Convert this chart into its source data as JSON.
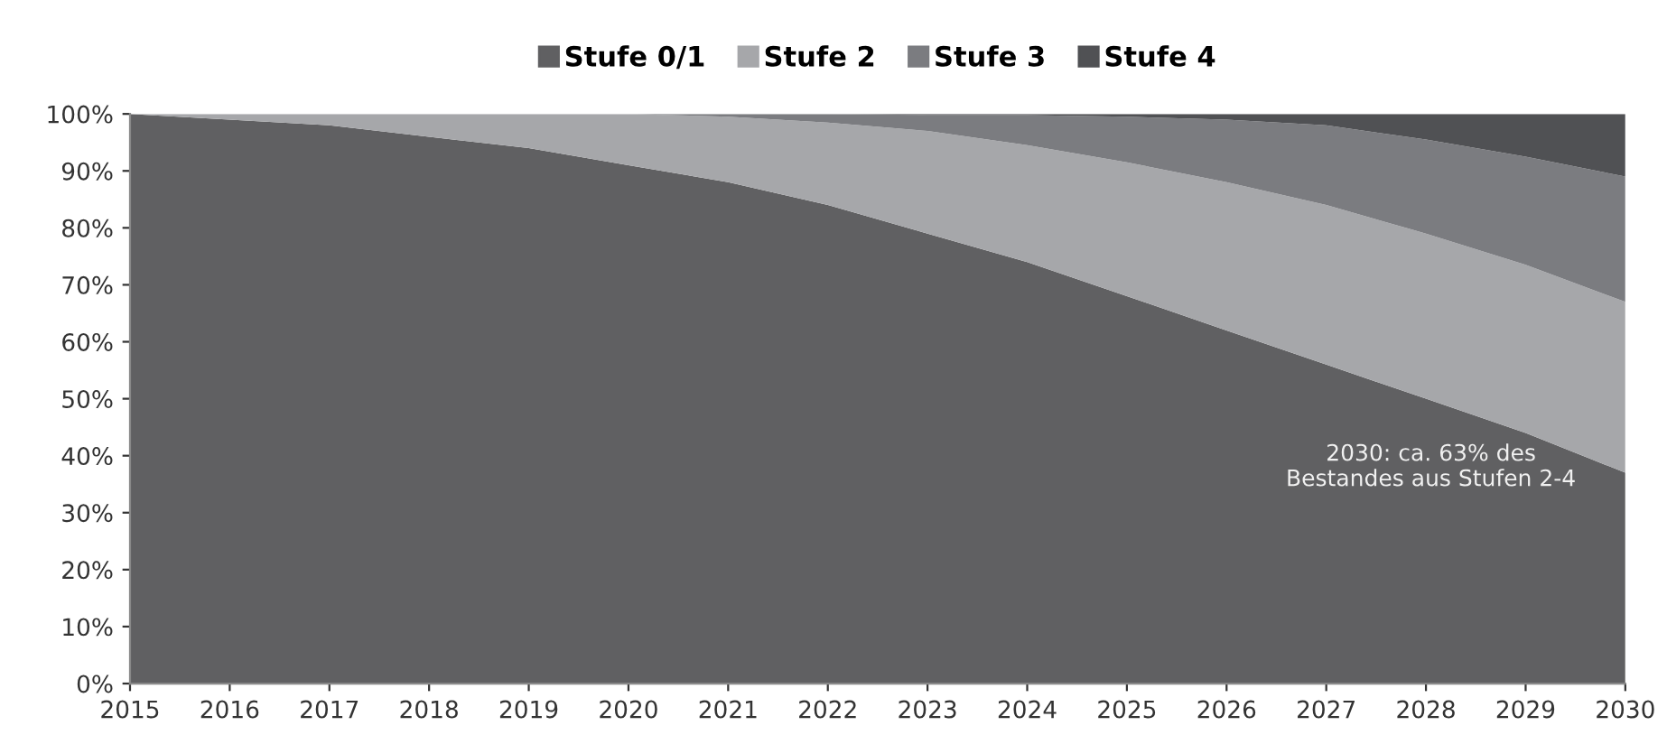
{
  "chart_data": {
    "type": "area",
    "stacked": true,
    "x": [
      2015,
      2016,
      2017,
      2018,
      2019,
      2020,
      2021,
      2022,
      2023,
      2024,
      2025,
      2026,
      2027,
      2028,
      2029,
      2030
    ],
    "series": [
      {
        "name": "Stufe 0/1",
        "color": "#606062",
        "values": [
          100,
          99,
          98,
          96,
          94,
          91,
          88,
          84,
          79,
          74,
          68,
          62,
          56,
          50,
          44,
          37
        ]
      },
      {
        "name": "Stufe 2",
        "color": "#a6a7aa",
        "values": [
          0,
          1,
          2,
          4,
          6,
          9,
          11.5,
          14.5,
          18,
          20.5,
          23.5,
          26,
          28,
          29,
          29.5,
          30
        ]
      },
      {
        "name": "Stufe 3",
        "color": "#7b7c80",
        "values": [
          0,
          0,
          0,
          0,
          0,
          0,
          0.5,
          1.5,
          2.8,
          5.3,
          8,
          11,
          14,
          16.5,
          19,
          22
        ]
      },
      {
        "name": "Stufe 4",
        "color": "#505154",
        "values": [
          0,
          0,
          0,
          0,
          0,
          0,
          0,
          0,
          0.2,
          0.2,
          0.5,
          1,
          2,
          4.5,
          7.5,
          11
        ]
      }
    ],
    "xlim": [
      2015,
      2030
    ],
    "xticks": [
      2015,
      2016,
      2017,
      2018,
      2019,
      2020,
      2021,
      2022,
      2023,
      2024,
      2025,
      2026,
      2027,
      2028,
      2029,
      2030
    ],
    "ylim": [
      0,
      100
    ],
    "yticks": [
      {
        "value": 0,
        "label": "0%"
      },
      {
        "value": 10,
        "label": "10%"
      },
      {
        "value": 20,
        "label": "20%"
      },
      {
        "value": 30,
        "label": "30%"
      },
      {
        "value": 40,
        "label": "40%"
      },
      {
        "value": 50,
        "label": "50%"
      },
      {
        "value": 60,
        "label": "60%"
      },
      {
        "value": 70,
        "label": "70%"
      },
      {
        "value": 80,
        "label": "80%"
      },
      {
        "value": 90,
        "label": "90%"
      },
      {
        "value": 100,
        "label": "100%"
      }
    ],
    "grid": false,
    "legend": "top",
    "annotations": [
      "2030: ca. 63% des\nBestandes aus Stufen 2-4"
    ]
  }
}
